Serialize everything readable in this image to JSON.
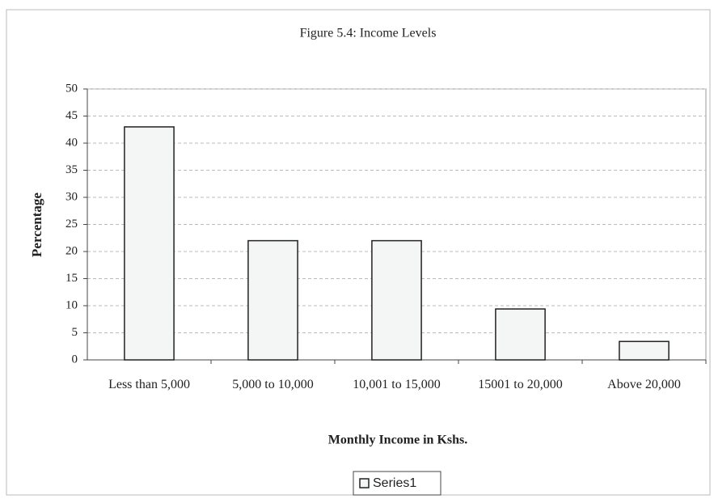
{
  "chart_data": {
    "type": "bar",
    "title": "Figure 5.4: Income Levels",
    "x_label": "Monthly Income in Kshs.",
    "y_label": "Percentage",
    "categories": [
      "Less than 5,000",
      "5,000 to 10,000",
      "10,001 to 15,000",
      "15001 to 20,000",
      "Above 20,000"
    ],
    "series": [
      {
        "name": "Series1",
        "color": "#f4f6f6",
        "values": [
          43,
          22,
          22,
          9.4,
          3.4
        ]
      }
    ],
    "ylim": [
      0,
      50
    ],
    "yticks": [
      0,
      5,
      10,
      15,
      20,
      25,
      30,
      35,
      40,
      45,
      50
    ],
    "grid": true,
    "legend": "bottom"
  }
}
